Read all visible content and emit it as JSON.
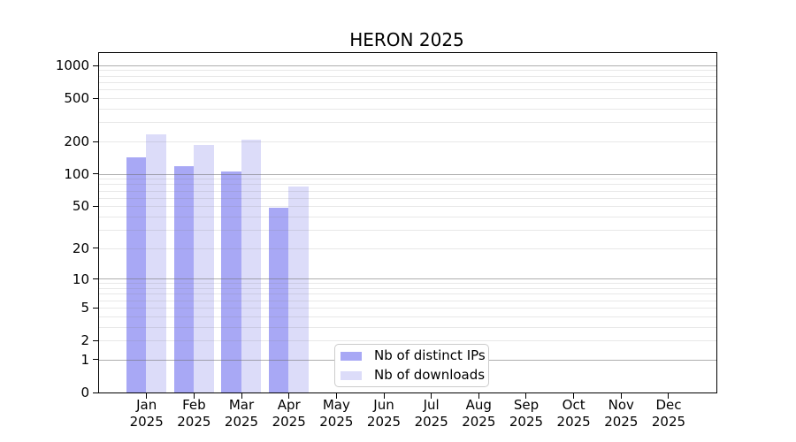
{
  "chart_data": {
    "type": "bar",
    "title": "HERON 2025",
    "x_categories": [
      "Jan",
      "Feb",
      "Mar",
      "Apr",
      "May",
      "Jun",
      "Jul",
      "Aug",
      "Sep",
      "Oct",
      "Nov",
      "Dec"
    ],
    "x_year_line": "2025",
    "series": [
      {
        "name": "Nb of distinct IPs",
        "color": "#a8a8f5",
        "values": [
          143,
          118,
          105,
          48,
          0,
          0,
          0,
          0,
          0,
          0,
          0,
          0
        ]
      },
      {
        "name": "Nb of downloads",
        "color": "#dcdcf9",
        "values": [
          232,
          186,
          206,
          76,
          0,
          0,
          0,
          0,
          0,
          0,
          0,
          0
        ]
      }
    ],
    "yscale": "log10(value+1)",
    "y_tick_labels": [
      "0",
      "1",
      "2",
      "5",
      "10",
      "20",
      "50",
      "100",
      "200",
      "500",
      "1000"
    ],
    "y_tick_values": [
      0,
      1,
      2,
      5,
      10,
      20,
      50,
      100,
      200,
      500,
      1000
    ],
    "ylim": [
      0,
      1300
    ],
    "grid": true,
    "legend_position": "lower center inside plot"
  }
}
